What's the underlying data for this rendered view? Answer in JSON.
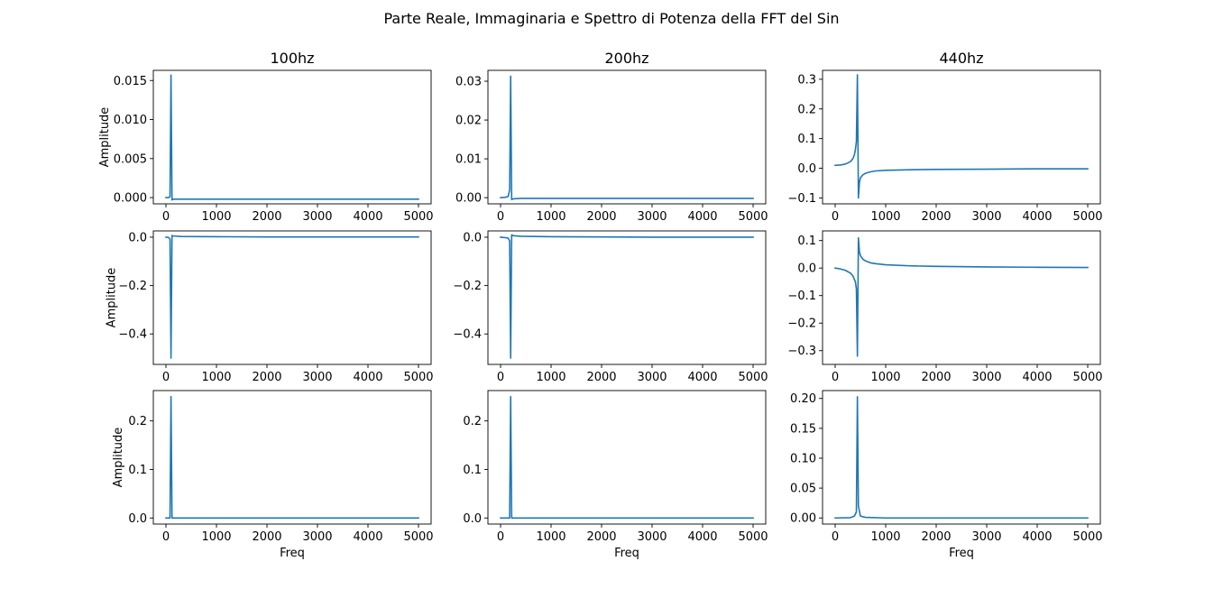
{
  "figure": {
    "suptitle": "Parte Reale, Immaginaria e Spettro di Potenza della FFT del Sin"
  },
  "style": {
    "line_color": "#1f77b4",
    "axes_color": "#000000",
    "background": "#ffffff"
  },
  "chart_data": [
    {
      "type": "line",
      "title": "100hz",
      "xlabel": "",
      "ylabel": "Amplitude",
      "xlim": [
        -250,
        5250
      ],
      "ylim": [
        -0.0008,
        0.0163
      ],
      "xticks": [
        0,
        1000,
        2000,
        3000,
        4000,
        5000
      ],
      "xtick_labels": [
        "0",
        "1000",
        "2000",
        "3000",
        "4000",
        "5000"
      ],
      "yticks": [
        0.0,
        0.005,
        0.01,
        0.015
      ],
      "ytick_labels": [
        "0.000",
        "0.005",
        "0.010",
        "0.015"
      ],
      "series": [
        {
          "x": [
            0,
            50,
            80,
            100,
            120,
            150,
            300,
            1000,
            2000,
            3000,
            4000,
            5000
          ],
          "values": [
            0.0,
            0.0,
            0.0001,
            0.0157,
            -0.0003,
            -0.0002,
            -0.0002,
            -0.0002,
            -0.0002,
            -0.0002,
            -0.0002,
            -0.0002
          ]
        }
      ]
    },
    {
      "type": "line",
      "title": "200hz",
      "xlabel": "",
      "ylabel": "",
      "xlim": [
        -250,
        5250
      ],
      "ylim": [
        -0.0016,
        0.0328
      ],
      "xticks": [
        0,
        1000,
        2000,
        3000,
        4000,
        5000
      ],
      "xtick_labels": [
        "0",
        "1000",
        "2000",
        "3000",
        "4000",
        "5000"
      ],
      "yticks": [
        0.0,
        0.01,
        0.02,
        0.03
      ],
      "ytick_labels": [
        "0.00",
        "0.01",
        "0.02",
        "0.03"
      ],
      "series": [
        {
          "x": [
            0,
            100,
            150,
            180,
            200,
            220,
            250,
            400,
            1000,
            2000,
            3000,
            4000,
            5000
          ],
          "values": [
            0.0,
            0.0001,
            0.0003,
            0.002,
            0.0313,
            -0.0005,
            -0.0003,
            -0.0002,
            -0.0002,
            -0.0002,
            -0.0002,
            -0.0002,
            -0.0002
          ]
        }
      ]
    },
    {
      "type": "line",
      "title": "440hz",
      "xlabel": "",
      "ylabel": "",
      "xlim": [
        -250,
        5250
      ],
      "ylim": [
        -0.12,
        0.33
      ],
      "xticks": [
        0,
        1000,
        2000,
        3000,
        4000,
        5000
      ],
      "xtick_labels": [
        "0",
        "1000",
        "2000",
        "3000",
        "4000",
        "5000"
      ],
      "yticks": [
        -0.1,
        0.0,
        0.1,
        0.2,
        0.3
      ],
      "ytick_labels": [
        "−0.1",
        "0.0",
        "0.1",
        "0.2",
        "0.3"
      ],
      "series": [
        {
          "x": [
            0,
            100,
            200,
            300,
            350,
            380,
            400,
            420,
            440,
            460,
            480,
            500,
            550,
            600,
            700,
            800,
            1000,
            1500,
            2000,
            3000,
            4000,
            5000
          ],
          "values": [
            0.01,
            0.011,
            0.014,
            0.022,
            0.032,
            0.045,
            0.062,
            0.09,
            0.315,
            -0.1,
            -0.048,
            -0.032,
            -0.022,
            -0.017,
            -0.012,
            -0.009,
            -0.007,
            -0.005,
            -0.004,
            -0.003,
            -0.002,
            -0.002
          ]
        }
      ]
    },
    {
      "type": "line",
      "title": "",
      "xlabel": "",
      "ylabel": "Amplitude",
      "xlim": [
        -250,
        5250
      ],
      "ylim": [
        -0.526,
        0.026
      ],
      "xticks": [
        0,
        1000,
        2000,
        3000,
        4000,
        5000
      ],
      "xtick_labels": [
        "0",
        "1000",
        "2000",
        "3000",
        "4000",
        "5000"
      ],
      "yticks": [
        -0.4,
        -0.2,
        0.0
      ],
      "ytick_labels": [
        "−0.4",
        "−0.2",
        "0.0"
      ],
      "series": [
        {
          "x": [
            0,
            50,
            80,
            100,
            120,
            150,
            300,
            1000,
            2000,
            3000,
            4000,
            5000
          ],
          "values": [
            0.0,
            -0.001,
            -0.008,
            -0.5,
            0.007,
            0.005,
            0.003,
            0.002,
            0.001,
            0.001,
            0.001,
            0.001
          ]
        }
      ]
    },
    {
      "type": "line",
      "title": "",
      "xlabel": "",
      "ylabel": "",
      "xlim": [
        -250,
        5250
      ],
      "ylim": [
        -0.526,
        0.026
      ],
      "xticks": [
        0,
        1000,
        2000,
        3000,
        4000,
        5000
      ],
      "xtick_labels": [
        "0",
        "1000",
        "2000",
        "3000",
        "4000",
        "5000"
      ],
      "yticks": [
        -0.4,
        -0.2,
        0.0
      ],
      "ytick_labels": [
        "−0.4",
        "−0.2",
        "0.0"
      ],
      "series": [
        {
          "x": [
            0,
            100,
            150,
            180,
            200,
            220,
            250,
            400,
            1000,
            2000,
            3000,
            4000,
            5000
          ],
          "values": [
            0.0,
            -0.002,
            -0.004,
            -0.015,
            -0.5,
            0.01,
            0.006,
            0.004,
            0.002,
            0.001,
            0.0,
            0.0,
            0.0
          ]
        }
      ]
    },
    {
      "type": "line",
      "title": "",
      "xlabel": "",
      "ylabel": "",
      "xlim": [
        -250,
        5250
      ],
      "ylim": [
        -0.35,
        0.135
      ],
      "xticks": [
        0,
        1000,
        2000,
        3000,
        4000,
        5000
      ],
      "xtick_labels": [
        "0",
        "1000",
        "2000",
        "3000",
        "4000",
        "5000"
      ],
      "yticks": [
        -0.3,
        -0.2,
        -0.1,
        0.0,
        0.1
      ],
      "ytick_labels": [
        "−0.3",
        "−0.2",
        "−0.1",
        "0.0",
        "0.1"
      ],
      "series": [
        {
          "x": [
            0,
            100,
            200,
            300,
            350,
            400,
            420,
            440,
            460,
            480,
            500,
            550,
            600,
            700,
            800,
            1000,
            1500,
            2000,
            3000,
            4000,
            5000
          ],
          "values": [
            0.0,
            -0.003,
            -0.008,
            -0.018,
            -0.028,
            -0.05,
            -0.075,
            -0.32,
            0.11,
            0.06,
            0.045,
            0.032,
            0.026,
            0.019,
            0.016,
            0.012,
            0.008,
            0.006,
            0.004,
            0.003,
            0.002
          ]
        }
      ]
    },
    {
      "type": "line",
      "title": "",
      "xlabel": "Freq",
      "ylabel": "Amplitude",
      "xlim": [
        -250,
        5250
      ],
      "ylim": [
        -0.0125,
        0.2625
      ],
      "xticks": [
        0,
        1000,
        2000,
        3000,
        4000,
        5000
      ],
      "xtick_labels": [
        "0",
        "1000",
        "2000",
        "3000",
        "4000",
        "5000"
      ],
      "yticks": [
        0.0,
        0.1,
        0.2
      ],
      "ytick_labels": [
        "0.0",
        "0.1",
        "0.2"
      ],
      "series": [
        {
          "x": [
            0,
            50,
            80,
            100,
            120,
            150,
            300,
            1000,
            2000,
            3000,
            4000,
            5000
          ],
          "values": [
            0.0,
            0.0,
            0.0,
            0.25,
            0.0,
            0.0,
            0.0,
            0.0,
            0.0,
            0.0,
            0.0,
            0.0
          ]
        }
      ]
    },
    {
      "type": "line",
      "title": "",
      "xlabel": "Freq",
      "ylabel": "",
      "xlim": [
        -250,
        5250
      ],
      "ylim": [
        -0.0125,
        0.2625
      ],
      "xticks": [
        0,
        1000,
        2000,
        3000,
        4000,
        5000
      ],
      "xtick_labels": [
        "0",
        "1000",
        "2000",
        "3000",
        "4000",
        "5000"
      ],
      "yticks": [
        0.0,
        0.1,
        0.2
      ],
      "ytick_labels": [
        "0.0",
        "0.1",
        "0.2"
      ],
      "series": [
        {
          "x": [
            0,
            100,
            150,
            180,
            200,
            220,
            250,
            400,
            1000,
            2000,
            3000,
            4000,
            5000
          ],
          "values": [
            0.0,
            0.0,
            0.0,
            0.0,
            0.25,
            0.0,
            0.0,
            0.0,
            0.0,
            0.0,
            0.0,
            0.0,
            0.0
          ]
        }
      ]
    },
    {
      "type": "line",
      "title": "",
      "xlabel": "Freq",
      "ylabel": "",
      "xlim": [
        -250,
        5250
      ],
      "ylim": [
        -0.0102,
        0.2132
      ],
      "xticks": [
        0,
        1000,
        2000,
        3000,
        4000,
        5000
      ],
      "xtick_labels": [
        "0",
        "1000",
        "2000",
        "3000",
        "4000",
        "5000"
      ],
      "yticks": [
        0.0,
        0.05,
        0.1,
        0.15,
        0.2
      ],
      "ytick_labels": [
        "0.00",
        "0.05",
        "0.10",
        "0.15",
        "0.20"
      ],
      "series": [
        {
          "x": [
            0,
            300,
            380,
            420,
            440,
            460,
            500,
            600,
            1000,
            2000,
            3000,
            4000,
            5000
          ],
          "values": [
            0.0,
            0.0005,
            0.003,
            0.01,
            0.203,
            0.02,
            0.003,
            0.001,
            0.0,
            0.0,
            0.0,
            0.0,
            0.0
          ]
        }
      ]
    }
  ]
}
